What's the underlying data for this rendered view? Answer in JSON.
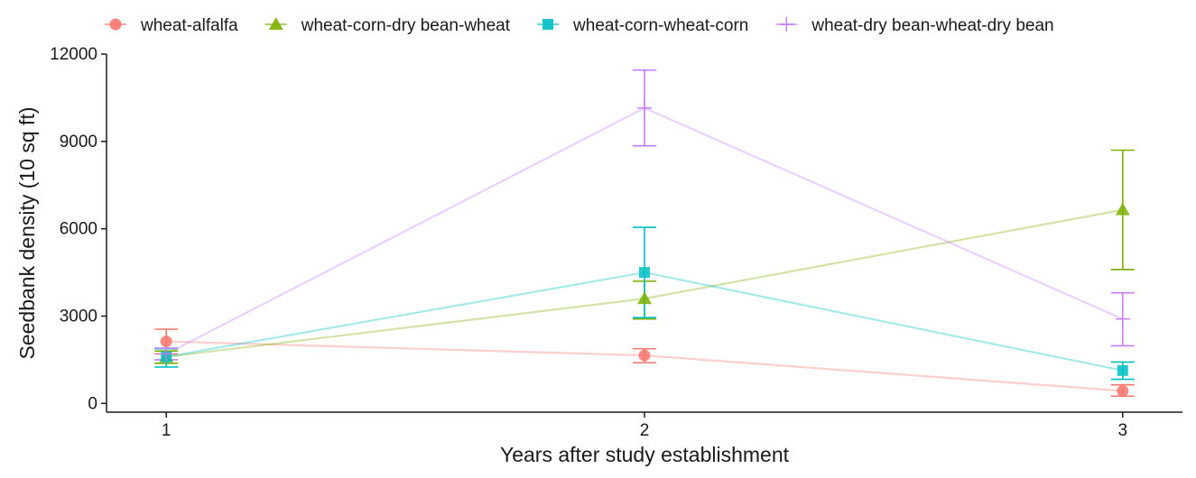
{
  "chart_data": {
    "type": "line",
    "title": "",
    "xlabel": "Years after study establishment",
    "ylabel": "Seedbank density (10 sq ft)",
    "x": [
      1,
      2,
      3
    ],
    "x_tick_labels": [
      "1",
      "2",
      "3"
    ],
    "xlim": [
      0.875,
      3.125
    ],
    "y_ticks": [
      0,
      3000,
      6000,
      9000,
      12000
    ],
    "y_tick_labels": [
      "0",
      "3000",
      "6000",
      "9000",
      "12000"
    ],
    "ylim": [
      -300,
      12000
    ],
    "grid": false,
    "legend_position": "top",
    "error_bars": true,
    "series": [
      {
        "name": "wheat-alfalfa",
        "color": "#f8766d",
        "marker": "circle",
        "values": [
          2130,
          1650,
          430
        ],
        "lower": [
          1700,
          1400,
          250
        ],
        "upper": [
          2550,
          1880,
          640
        ]
      },
      {
        "name": "wheat-corn-dry bean-wheat",
        "color": "#7cae00",
        "marker": "triangle",
        "values": [
          1600,
          3600,
          6650
        ],
        "lower": [
          1380,
          2900,
          4600
        ],
        "upper": [
          1800,
          4200,
          8700
        ]
      },
      {
        "name": "wheat-corn-wheat-corn",
        "color": "#00bfc4",
        "marker": "square",
        "values": [
          1600,
          4500,
          1130
        ],
        "lower": [
          1250,
          2950,
          830
        ],
        "upper": [
          1880,
          6050,
          1420
        ]
      },
      {
        "name": "wheat-dry bean-wheat-dry bean",
        "color": "#c77cff",
        "marker": "plus",
        "values": [
          1700,
          10150,
          2900
        ],
        "lower": [
          1500,
          8850,
          1980
        ],
        "upper": [
          1900,
          11450,
          3800
        ]
      }
    ]
  }
}
